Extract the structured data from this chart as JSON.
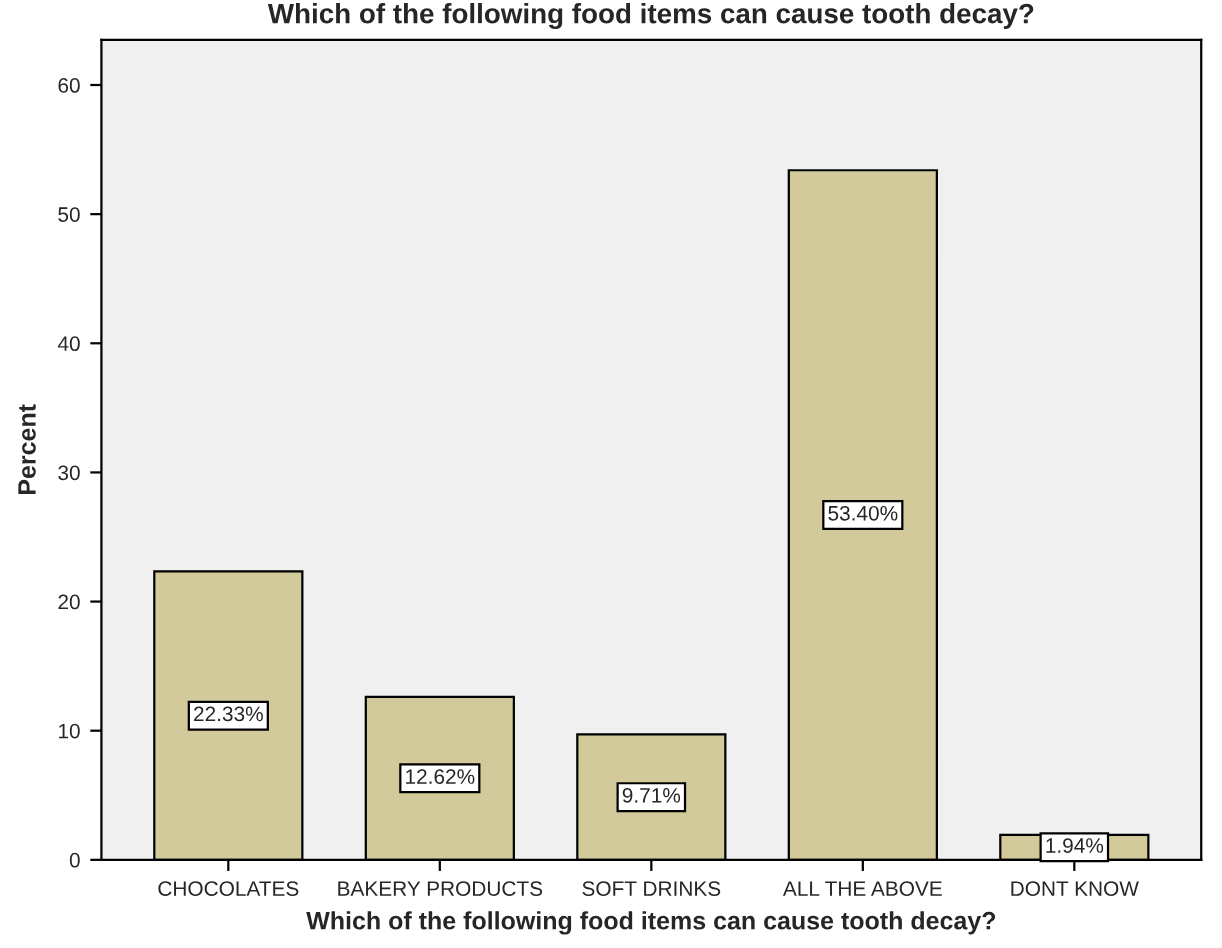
{
  "chart_data": {
    "type": "bar",
    "title": "Which of the following food items can cause tooth decay?",
    "xlabel": "Which of the following food items can cause tooth decay?",
    "ylabel": "Percent",
    "categories": [
      "CHOCOLATES",
      "BAKERY PRODUCTS",
      "SOFT DRINKS",
      "ALL THE ABOVE",
      "DONT KNOW"
    ],
    "values": [
      22.33,
      12.62,
      9.71,
      53.4,
      1.94
    ],
    "value_labels": [
      "22.33%",
      "12.62%",
      "9.71%",
      "53.40%",
      "1.94%"
    ],
    "color": "#d3ca9b",
    "ylim": [
      0,
      63.5
    ],
    "yticks": [
      0,
      10,
      20,
      30,
      40,
      50,
      60
    ],
    "grid": false
  }
}
